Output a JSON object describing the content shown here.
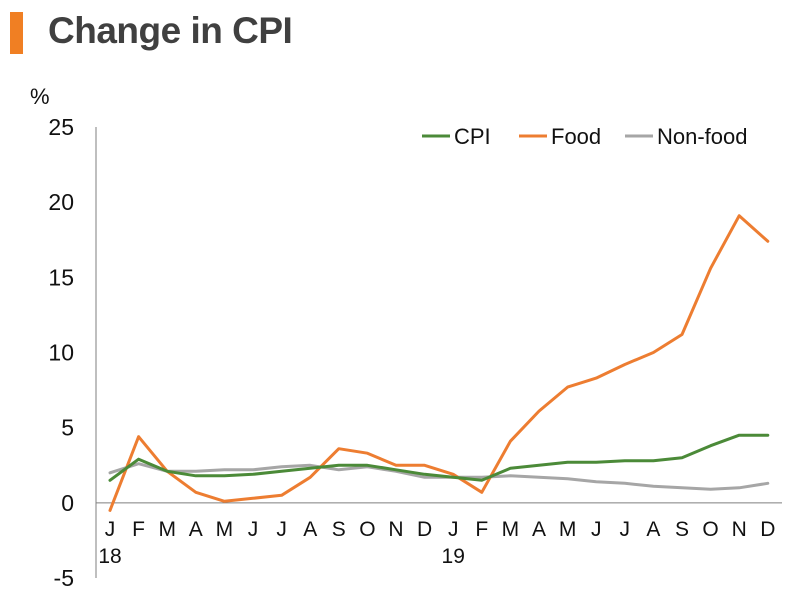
{
  "header": {
    "title": "Change in CPI"
  },
  "colors": {
    "accent": "#f07f23",
    "cpi": "#4b8a38",
    "food": "#ed7d31",
    "nonfood": "#a6a6a6",
    "axis": "#7f7f7f"
  },
  "chart_data": {
    "type": "line",
    "title": "Change in CPI",
    "ylabel": "%",
    "xlabel": "",
    "ylim": [
      -5,
      25
    ],
    "yticks": [
      -5,
      0,
      5,
      10,
      15,
      20,
      25
    ],
    "categories": [
      "J",
      "F",
      "M",
      "A",
      "M",
      "J",
      "J",
      "A",
      "S",
      "O",
      "N",
      "D",
      "J",
      "F",
      "M",
      "A",
      "M",
      "J",
      "J",
      "A",
      "S",
      "O",
      "N",
      "D"
    ],
    "year_labels": [
      {
        "index": 0,
        "label": "18"
      },
      {
        "index": 12,
        "label": "19"
      }
    ],
    "legend_position": "top-right",
    "series": [
      {
        "name": "CPI",
        "color": "#4b8a38",
        "values": [
          1.5,
          2.9,
          2.1,
          1.8,
          1.8,
          1.9,
          2.1,
          2.3,
          2.5,
          2.5,
          2.2,
          1.9,
          1.7,
          1.5,
          2.3,
          2.5,
          2.7,
          2.7,
          2.8,
          2.8,
          3.0,
          3.8,
          4.5,
          4.5
        ]
      },
      {
        "name": "Food",
        "color": "#ed7d31",
        "values": [
          -0.5,
          4.4,
          2.1,
          0.7,
          0.1,
          0.3,
          0.5,
          1.7,
          3.6,
          3.3,
          2.5,
          2.5,
          1.9,
          0.7,
          4.1,
          6.1,
          7.7,
          8.3,
          9.2,
          10.0,
          11.2,
          15.6,
          19.1,
          17.4
        ]
      },
      {
        "name": "Non-food",
        "color": "#a6a6a6",
        "values": [
          2.0,
          2.6,
          2.1,
          2.1,
          2.2,
          2.2,
          2.4,
          2.5,
          2.2,
          2.4,
          2.1,
          1.7,
          1.7,
          1.7,
          1.8,
          1.7,
          1.6,
          1.4,
          1.3,
          1.1,
          1.0,
          0.9,
          1.0,
          1.3
        ]
      }
    ]
  }
}
